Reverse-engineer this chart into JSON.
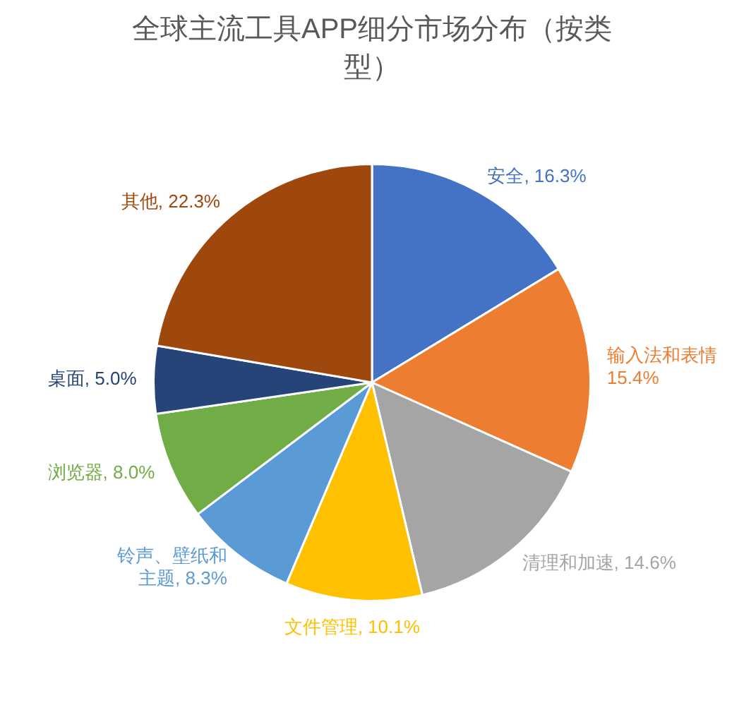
{
  "chart_data": {
    "type": "pie",
    "title": "全球主流工具APP细分市场分布（按类型）",
    "categories": [
      "安全",
      "输入法和表情",
      "清理和加速",
      "文件管理",
      "铃声、壁纸和主题",
      "浏览器",
      "桌面",
      "其他"
    ],
    "values": [
      16.3,
      15.4,
      14.6,
      10.1,
      8.3,
      8.0,
      5.0,
      22.3
    ],
    "colors": [
      "#4472c4",
      "#ed7d31",
      "#a5a5a5",
      "#ffc000",
      "#5b9bd5",
      "#70ad47",
      "#264478",
      "#9e480e"
    ],
    "value_labels": [
      "16.3%",
      "15.4%",
      "14.6%",
      "10.1%",
      "8.3%",
      "8.0%",
      "5.0%",
      "22.3%"
    ],
    "legend": false
  }
}
